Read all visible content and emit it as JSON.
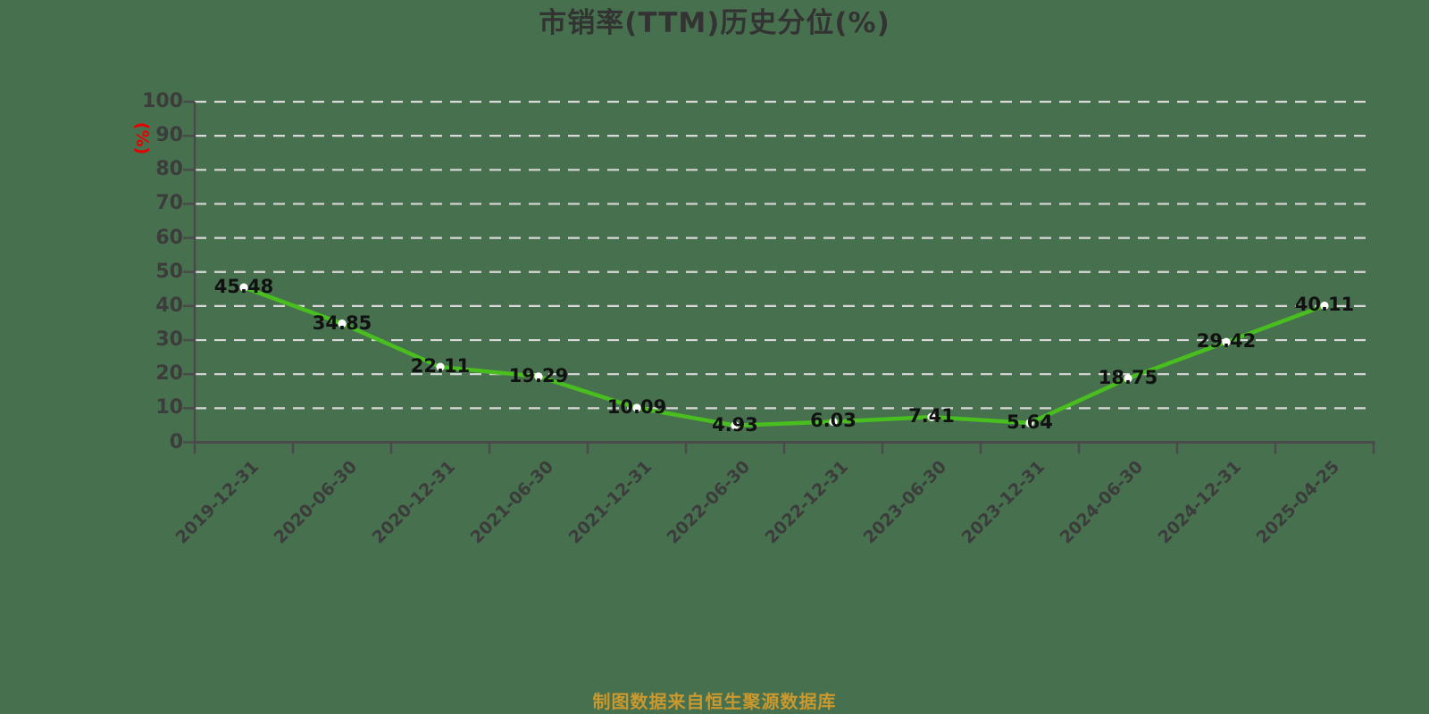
{
  "title": "市销率(TTM)历史分位(%)",
  "footer": {
    "source_text": "制图数据来自恒生聚源数据库"
  },
  "chart_data": {
    "type": "line",
    "title": "市销率(TTM)历史分位(%)",
    "categories": [
      "2019-12-31",
      "2020-06-30",
      "2020-12-31",
      "2021-06-30",
      "2021-12-31",
      "2022-06-30",
      "2022-12-31",
      "2023-06-30",
      "2023-12-31",
      "2024-06-30",
      "2024-12-31",
      "2025-04-25"
    ],
    "series": [
      {
        "name": "市销率(TTM)历史分位",
        "values": [
          45.48,
          34.85,
          22.11,
          19.29,
          10.09,
          4.93,
          6.03,
          7.41,
          5.64,
          18.75,
          29.42,
          40.11
        ]
      }
    ],
    "data_labels": [
      "45.48",
      "34.85",
      "22.11",
      "19.29",
      "10.09",
      "4.93",
      "6.03",
      "7.41",
      "5.64",
      "18.75",
      "29.42",
      "40.11"
    ],
    "ylabel": "(%)",
    "ylim": [
      0,
      100
    ],
    "yticks": [
      0,
      10,
      20,
      30,
      40,
      50,
      60,
      70,
      80,
      90,
      100
    ],
    "grid": true,
    "grid_style": "dashed",
    "legend": "none",
    "colors": {
      "background": "#47714e",
      "line": "#49be1f",
      "marker_fill": "#ffffff",
      "grid": "#d9d9d9",
      "axis": "#4a4a4a",
      "tick_label": "#3c3c3c",
      "point_label": "#111111",
      "title": "#333333",
      "ylabel": "#e60000",
      "footer": "#c9982e"
    }
  }
}
